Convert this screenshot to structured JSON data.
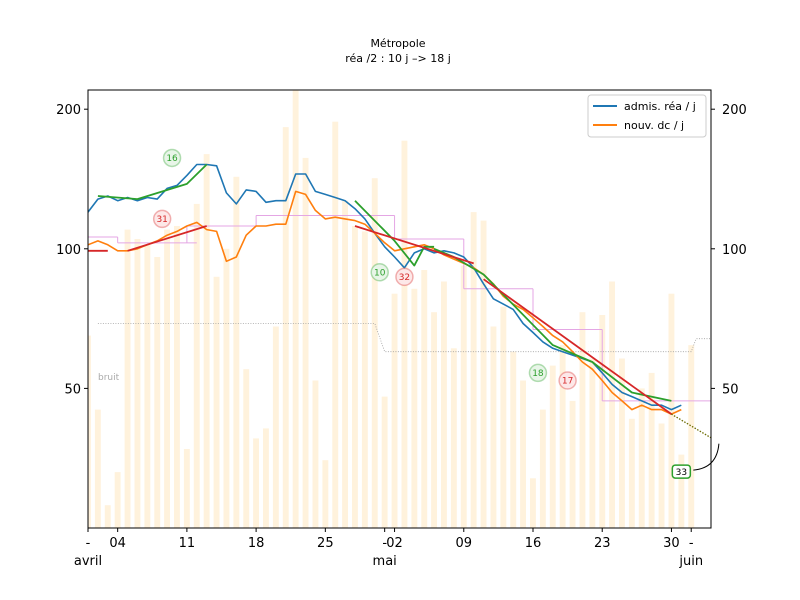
{
  "chart_data": {
    "type": "line",
    "title": "Métropole",
    "subtitle": "réa /2 : 10 j –> 18 j",
    "xlabel": "",
    "ylabel": "",
    "yscale": "log",
    "ylim": [
      25,
      220
    ],
    "xlim": [
      "2020-04-01",
      "2020-06-03"
    ],
    "yticks": [
      50,
      100,
      200
    ],
    "ytick_labels": [
      "50",
      "100",
      "200"
    ],
    "xticks": [
      {
        "day": 0,
        "label": "-"
      },
      {
        "day": 3,
        "label": "04"
      },
      {
        "day": 10,
        "label": "11"
      },
      {
        "day": 17,
        "label": "18"
      },
      {
        "day": 24,
        "label": "25"
      },
      {
        "day": 30,
        "label": "-"
      },
      {
        "day": 31,
        "label": "02"
      },
      {
        "day": 38,
        "label": "09"
      },
      {
        "day": 45,
        "label": "16"
      },
      {
        "day": 52,
        "label": "23"
      },
      {
        "day": 59,
        "label": "30"
      },
      {
        "day": 61,
        "label": "-"
      }
    ],
    "month_labels": [
      {
        "day": 0,
        "label": "avril"
      },
      {
        "day": 30,
        "label": "mai"
      },
      {
        "day": 61,
        "label": "juin"
      }
    ],
    "legend": {
      "position": "upper-right",
      "entries": [
        {
          "label": "admis. réa / j",
          "color": "#1f77b4"
        },
        {
          "label": "nouv. dc / j",
          "color": "#ff7f0e"
        }
      ]
    },
    "noise_label": "bruit",
    "series": [
      {
        "name": "admis. réa / j",
        "color": "#1f77b4",
        "start_day": 0,
        "values": [
          120,
          128,
          130,
          127,
          129,
          127,
          129,
          128,
          135,
          137,
          144,
          152,
          152,
          151,
          132,
          125,
          134,
          133,
          126,
          127,
          127,
          145,
          145,
          133,
          131,
          129,
          127,
          122,
          116,
          108,
          101,
          96,
          91,
          98,
          100,
          98,
          99,
          98,
          96,
          91,
          84,
          78,
          76,
          74,
          69,
          66,
          63,
          61,
          60,
          59,
          58,
          57,
          54,
          51,
          49,
          48,
          47,
          46,
          46,
          45,
          46
        ]
      },
      {
        "name": "nouv. dc / j",
        "color": "#ff7f0e",
        "start_day": 0,
        "values": [
          102,
          104,
          102,
          99,
          99,
          100,
          102,
          104,
          107,
          109,
          112,
          114,
          110,
          109,
          94,
          96,
          107,
          112,
          112,
          113,
          113,
          133,
          131,
          121,
          116,
          117,
          116,
          115,
          113,
          108,
          103,
          99,
          100,
          101,
          102,
          100,
          97,
          95,
          93,
          91,
          88,
          84,
          79,
          76,
          74,
          71,
          68,
          65,
          63,
          60,
          57,
          55,
          52,
          49,
          47,
          45,
          46,
          45,
          45,
          44,
          45
        ]
      }
    ],
    "daily_bars": {
      "color": "#fff2dc",
      "start_day": 0,
      "values": [
        65,
        45,
        28,
        33,
        110,
        105,
        102,
        96,
        110,
        112,
        37,
        125,
        160,
        87,
        100,
        143,
        55,
        39,
        41,
        68,
        183,
        280,
        157,
        52,
        35,
        188,
        127,
        112,
        109,
        142,
        48,
        80,
        171,
        82,
        90,
        73,
        85,
        61,
        92,
        120,
        115,
        68,
        75,
        60,
        52,
        32,
        45,
        56,
        62,
        47,
        73,
        58,
        72,
        85,
        58,
        43,
        50,
        54,
        42,
        80,
        36,
        62
      ]
    },
    "steps": {
      "color": "#e4a6e4",
      "segments": [
        {
          "from": 0,
          "to": 3,
          "value": 106
        },
        {
          "from": 3,
          "to": 9,
          "value": 103
        },
        {
          "from": 9,
          "to": 11,
          "value": 103
        },
        {
          "from": 10,
          "to": 17,
          "value": 112
        },
        {
          "from": 17,
          "to": 31,
          "value": 118
        },
        {
          "from": 31,
          "to": 38,
          "value": 105
        },
        {
          "from": 38,
          "to": 45,
          "value": 82
        },
        {
          "from": 45,
          "to": 52,
          "value": 67
        },
        {
          "from": 52,
          "to": 59,
          "value": 47
        },
        {
          "from": 59,
          "to": 64,
          "value": 47
        }
      ]
    },
    "noise_line": {
      "color": "#a0a0a0",
      "points": [
        [
          1,
          69
        ],
        [
          29,
          69
        ],
        [
          30,
          60
        ],
        [
          60,
          60
        ],
        [
          61,
          60
        ],
        [
          61.5,
          64
        ],
        [
          64,
          64
        ]
      ]
    },
    "fits": [
      {
        "color": "#2ca02c",
        "points": [
          [
            1,
            130
          ],
          [
            5,
            128
          ],
          [
            10,
            138
          ],
          [
            12,
            152
          ]
        ]
      },
      {
        "color": "#2ca02c",
        "points": [
          [
            27,
            127
          ],
          [
            31,
            104
          ],
          [
            33,
            92
          ],
          [
            34,
            101
          ],
          [
            35,
            101
          ]
        ]
      },
      {
        "color": "#2ca02c",
        "points": [
          [
            35,
            100
          ],
          [
            37,
            96
          ],
          [
            40,
            88
          ],
          [
            47,
            62
          ],
          [
            51,
            57
          ],
          [
            55,
            49
          ],
          [
            59,
            47
          ]
        ]
      },
      {
        "color": "#d62728",
        "points": [
          [
            0,
            99
          ],
          [
            2,
            99
          ]
        ]
      },
      {
        "color": "#d62728",
        "points": [
          [
            4,
            99
          ],
          [
            12,
            112
          ]
        ]
      },
      {
        "color": "#d62728",
        "points": [
          [
            27,
            112
          ],
          [
            39,
            93
          ]
        ]
      },
      {
        "color": "#d62728",
        "points": [
          [
            40,
            86
          ],
          [
            59,
            44
          ]
        ]
      }
    ],
    "projection": {
      "color": "#6b6b00",
      "points": [
        [
          59,
          44
        ],
        [
          64,
          38
        ]
      ]
    },
    "annotations": [
      {
        "day": 8.5,
        "value": 157,
        "label": "16",
        "color": "#2ca02c",
        "fill": "#e8f5e8"
      },
      {
        "day": 7.5,
        "value": 116,
        "label": "31",
        "color": "#d62728",
        "fill": "#fde8e8"
      },
      {
        "day": 29.5,
        "value": 89,
        "label": "10",
        "color": "#2ca02c",
        "fill": "#e8f5e8"
      },
      {
        "day": 32,
        "value": 87,
        "label": "32",
        "color": "#d62728",
        "fill": "#fde8e8"
      },
      {
        "day": 45.5,
        "value": 54,
        "label": "18",
        "color": "#2ca02c",
        "fill": "#e8f5e8"
      },
      {
        "day": 48.5,
        "value": 52,
        "label": "17",
        "color": "#d62728",
        "fill": "#fde8e8"
      },
      {
        "day": 60,
        "value": 33,
        "label": "33",
        "color": "#000000",
        "fill": "#ffffff",
        "border": "#2ca02c"
      }
    ]
  }
}
